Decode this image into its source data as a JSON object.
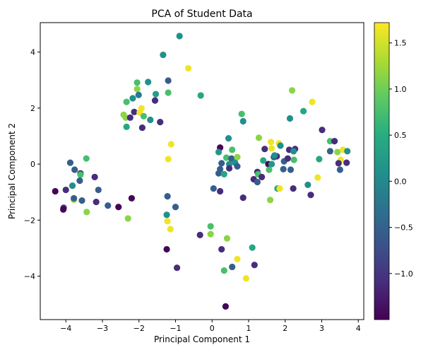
{
  "chart_data": {
    "type": "scatter",
    "title": "PCA of Student Data",
    "xlabel": "Principal Component 1",
    "ylabel": "Principal Component 2",
    "xlim": [
      -4.7,
      4.15
    ],
    "ylim": [
      -5.55,
      5.05
    ],
    "xticks": [
      -4,
      -3,
      -2,
      -1,
      0,
      1,
      2,
      3,
      4
    ],
    "yticks": [
      -4,
      -2,
      0,
      2,
      4
    ],
    "colormap": "viridis",
    "colorbar": {
      "range": [
        -1.5,
        1.72
      ],
      "ticks": [
        -1.0,
        -0.5,
        0.0,
        0.5,
        1.0,
        1.5
      ],
      "tick_labels": [
        "−1.0",
        "−0.5",
        "0.0",
        "0.5",
        "1.0",
        "1.5"
      ]
    },
    "grid": false,
    "points": [
      [
        -0.89,
        4.57,
        0.1
      ],
      [
        -1.34,
        3.9,
        0.1
      ],
      [
        -0.65,
        3.42,
        1.65
      ],
      [
        -1.2,
        2.98,
        -0.55
      ],
      [
        -2.05,
        2.91,
        0.75
      ],
      [
        -1.75,
        2.93,
        0.1
      ],
      [
        -0.31,
        2.45,
        0.4
      ],
      [
        -1.2,
        2.55,
        0.75
      ],
      [
        -1.54,
        2.5,
        0.3
      ],
      [
        -2.05,
        2.68,
        1.15
      ],
      [
        -2.01,
        2.47,
        -0.2
      ],
      [
        -2.17,
        2.35,
        0.1
      ],
      [
        -2.34,
        2.22,
        0.75
      ],
      [
        -1.56,
        2.27,
        -1.1
      ],
      [
        -2.13,
        1.86,
        -1.1
      ],
      [
        -1.93,
        1.99,
        1.65
      ],
      [
        -1.98,
        1.84,
        1.65
      ],
      [
        -2.42,
        1.76,
        1.15
      ],
      [
        -2.36,
        1.66,
        1.15
      ],
      [
        -2.24,
        1.66,
        -1.1
      ],
      [
        -1.87,
        1.71,
        0.75
      ],
      [
        -1.69,
        1.58,
        0.1
      ],
      [
        -1.42,
        1.5,
        -1.1
      ],
      [
        -2.34,
        1.33,
        0.4
      ],
      [
        -1.91,
        1.3,
        -1.1
      ],
      [
        -1.12,
        0.71,
        1.65
      ],
      [
        -1.2,
        0.18,
        1.65
      ],
      [
        0.81,
        1.79,
        0.75
      ],
      [
        0.85,
        1.53,
        0.1
      ],
      [
        2.13,
        1.63,
        0.1
      ],
      [
        2.5,
        1.89,
        0.4
      ],
      [
        2.74,
        2.22,
        1.65
      ],
      [
        2.19,
        2.63,
        1.15
      ],
      [
        3.01,
        1.22,
        -1.1
      ],
      [
        0.45,
        0.92,
        0.1
      ],
      [
        1.28,
        0.94,
        1.15
      ],
      [
        1.61,
        0.79,
        1.65
      ],
      [
        1.83,
        0.74,
        1.65
      ],
      [
        1.87,
        0.66,
        0.1
      ],
      [
        1.63,
        0.56,
        1.65
      ],
      [
        1.44,
        0.54,
        -1.1
      ],
      [
        2.11,
        0.51,
        -1.1
      ],
      [
        2.27,
        0.54,
        -1.1
      ],
      [
        2.23,
        0.46,
        0.1
      ],
      [
        3.23,
        0.82,
        0.75
      ],
      [
        3.35,
        0.82,
        -1.1
      ],
      [
        3.23,
        0.46,
        -0.55
      ],
      [
        3.43,
        0.43,
        1.15
      ],
      [
        3.58,
        0.51,
        1.65
      ],
      [
        3.7,
        0.46,
        0.1
      ],
      [
        3.52,
        0.15,
        1.65
      ],
      [
        3.46,
        0.03,
        -1.1
      ],
      [
        3.68,
        0.05,
        -1.1
      ],
      [
        3.5,
        -0.2,
        -0.55
      ],
      [
        2.93,
        0.18,
        0.4
      ],
      [
        0.22,
        0.59,
        -1.45
      ],
      [
        0.18,
        0.43,
        0.2
      ],
      [
        0.55,
        0.51,
        0.75
      ],
      [
        0.39,
        0.23,
        0.75
      ],
      [
        0.53,
        0.2,
        -0.55
      ],
      [
        0.69,
        0.25,
        1.15
      ],
      [
        0.26,
        0.03,
        -0.55
      ],
      [
        0.47,
        0.0,
        0.1
      ],
      [
        0.63,
        0.05,
        0.1
      ],
      [
        0.69,
        -0.08,
        -0.55
      ],
      [
        0.47,
        -0.15,
        -1.1
      ],
      [
        0.22,
        -0.18,
        -0.55
      ],
      [
        0.18,
        -0.33,
        -0.55
      ],
      [
        0.33,
        -0.36,
        0.4
      ],
      [
        1.4,
        0.13,
        0.4
      ],
      [
        1.69,
        0.25,
        -0.55
      ],
      [
        1.77,
        0.28,
        -1.1
      ],
      [
        1.71,
        0.31,
        0.1
      ],
      [
        1.54,
        0.0,
        -1.45
      ],
      [
        1.63,
        0.0,
        0.2
      ],
      [
        1.56,
        -0.2,
        0.75
      ],
      [
        1.97,
        0.1,
        -0.55
      ],
      [
        2.07,
        0.2,
        -1.1
      ],
      [
        2.24,
        0.15,
        0.75
      ],
      [
        1.95,
        -0.18,
        -0.55
      ],
      [
        2.15,
        -0.2,
        -0.55
      ],
      [
        1.24,
        -0.28,
        -1.1
      ],
      [
        1.26,
        -0.36,
        0.75
      ],
      [
        1.14,
        -0.54,
        -1.1
      ],
      [
        1.36,
        -0.46,
        -1.1
      ],
      [
        1.24,
        -0.64,
        -0.55
      ],
      [
        0.04,
        -0.87,
        -0.55
      ],
      [
        0.22,
        -0.97,
        -1.1
      ],
      [
        0.85,
        -1.2,
        -1.1
      ],
      [
        1.79,
        -0.87,
        0.4
      ],
      [
        1.85,
        -0.87,
        1.65
      ],
      [
        2.22,
        -0.87,
        -1.1
      ],
      [
        2.89,
        -0.48,
        1.65
      ],
      [
        2.62,
        -0.74,
        0.1
      ],
      [
        2.7,
        -1.1,
        -1.1
      ],
      [
        1.59,
        -1.28,
        1.15
      ],
      [
        -3.88,
        0.05,
        -0.55
      ],
      [
        -3.76,
        -0.2,
        -0.55
      ],
      [
        -3.6,
        -0.33,
        -1.1
      ],
      [
        -3.6,
        -0.38,
        0.75
      ],
      [
        -3.44,
        0.2,
        0.75
      ],
      [
        -3.21,
        -0.46,
        -1.1
      ],
      [
        -3.62,
        -0.59,
        -0.55
      ],
      [
        -3.82,
        -0.77,
        0.1
      ],
      [
        -4.29,
        -0.97,
        -1.45
      ],
      [
        -4.0,
        -0.92,
        -1.1
      ],
      [
        -3.11,
        -0.92,
        -0.55
      ],
      [
        -3.78,
        -1.27,
        1.15
      ],
      [
        -3.78,
        -1.22,
        -0.55
      ],
      [
        -3.56,
        -1.3,
        -0.55
      ],
      [
        -3.17,
        -1.35,
        -1.1
      ],
      [
        -2.85,
        -1.48,
        -0.55
      ],
      [
        -2.56,
        -1.53,
        -1.45
      ],
      [
        -2.2,
        -1.22,
        -1.45
      ],
      [
        -4.06,
        -1.56,
        -1.1
      ],
      [
        -4.07,
        -1.62,
        -1.45
      ],
      [
        -3.43,
        -1.71,
        1.15
      ],
      [
        -2.3,
        -1.94,
        1.15
      ],
      [
        -1.22,
        -1.15,
        -0.55
      ],
      [
        -1.0,
        -1.53,
        -0.55
      ],
      [
        -1.24,
        -1.81,
        0.1
      ],
      [
        -1.22,
        -2.04,
        1.65
      ],
      [
        -1.14,
        -2.32,
        1.65
      ],
      [
        -1.24,
        -3.04,
        -1.45
      ],
      [
        -0.96,
        -3.7,
        -1.1
      ],
      [
        -0.33,
        -2.53,
        -1.1
      ],
      [
        -0.04,
        -2.22,
        0.75
      ],
      [
        -0.04,
        -2.5,
        1.15
      ],
      [
        0.41,
        -2.65,
        1.15
      ],
      [
        0.26,
        -3.04,
        -1.1
      ],
      [
        1.1,
        -2.98,
        0.4
      ],
      [
        1.16,
        -3.6,
        -1.1
      ],
      [
        0.69,
        -3.39,
        1.65
      ],
      [
        0.55,
        -3.67,
        -0.55
      ],
      [
        0.33,
        -3.8,
        0.75
      ],
      [
        0.93,
        -4.08,
        1.65
      ],
      [
        0.37,
        -5.08,
        -1.45
      ]
    ]
  }
}
